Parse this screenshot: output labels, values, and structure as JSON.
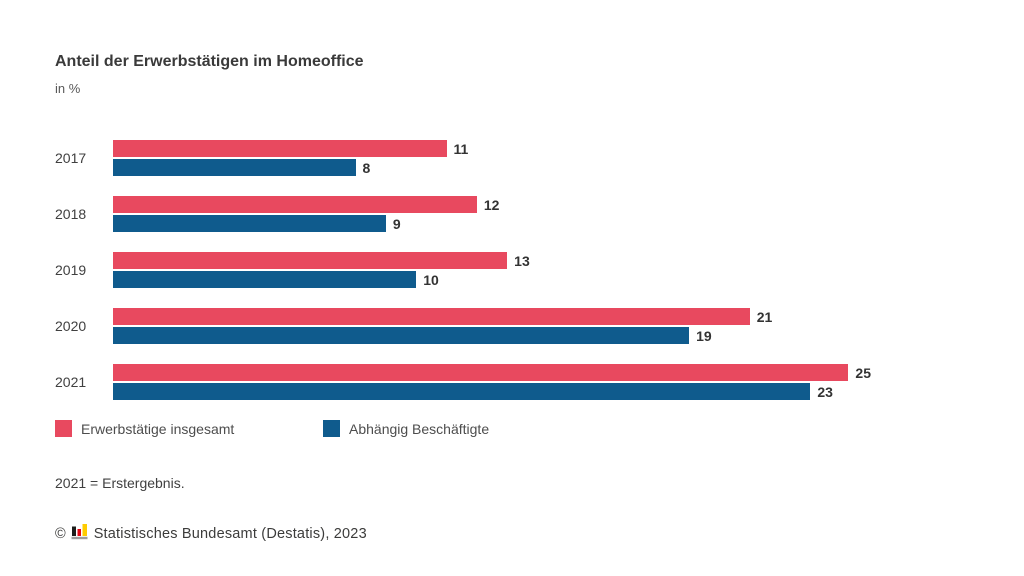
{
  "chart": {
    "title": "Anteil der Erwerbstätigen im Homeoffice",
    "unit": "in %"
  },
  "chart_data": {
    "type": "bar",
    "orientation": "horizontal",
    "title": "Anteil der Erwerbstätigen im Homeoffice",
    "ylabel": "",
    "xlabel": "in %",
    "categories": [
      "2017",
      "2018",
      "2019",
      "2020",
      "2021"
    ],
    "series": [
      {
        "name": "Erwerbstätige insgesamt",
        "color": "#E8495F",
        "values": [
          11,
          12,
          13,
          21,
          25
        ]
      },
      {
        "name": "Abhängig Beschäftigte",
        "color": "#0F5B8D",
        "values": [
          8,
          9,
          10,
          19,
          23
        ]
      }
    ],
    "xlim": [
      0,
      25
    ],
    "grid": false,
    "value_labels": true,
    "legend_position": "bottom"
  },
  "footnote": "2021 = Erstergebnis.",
  "footer": {
    "copyright": "©",
    "source": "Statistisches Bundesamt (Destatis), 2023",
    "logo_colors": {
      "black": "#1D1D1B",
      "red": "#E30613",
      "gold": "#FFCC00",
      "base": "#9D9D9C"
    }
  }
}
